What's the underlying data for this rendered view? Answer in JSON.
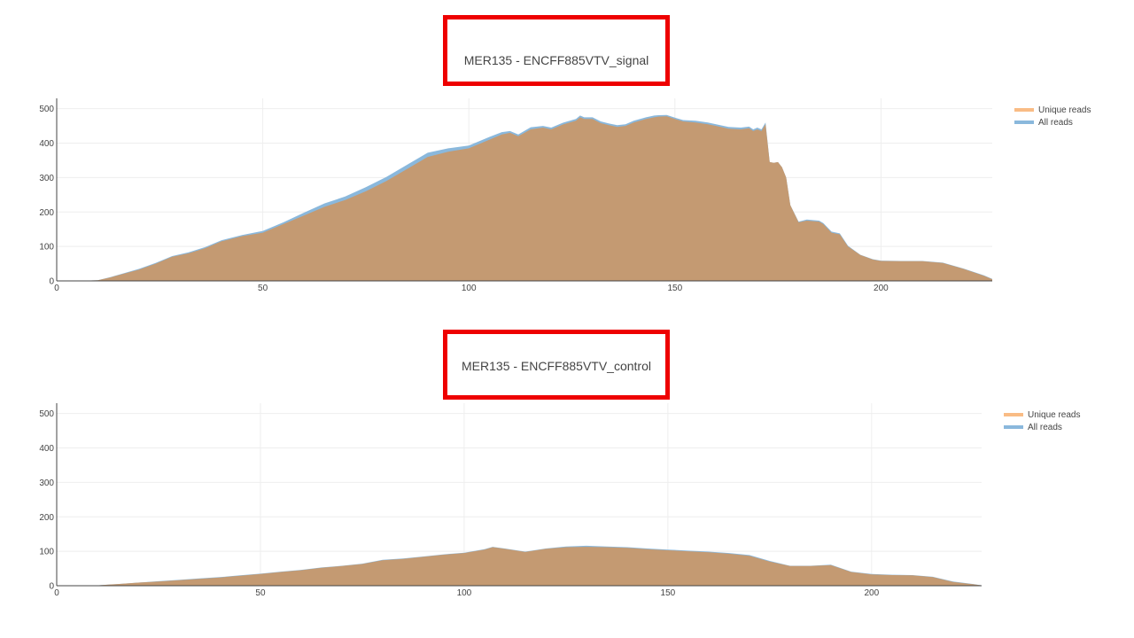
{
  "colors": {
    "unique": "#f9bc85",
    "all": "#8ab8dc",
    "overlap": "#c49a72",
    "frame": "#ee0000",
    "grid": "#eeeeee",
    "axis": "#444444"
  },
  "chart_data": [
    {
      "type": "area",
      "title": "MER135 - ENCFF885VTV_signal",
      "xlabel": "",
      "ylabel": "",
      "xlim": [
        0,
        227
      ],
      "ylim": [
        0,
        530
      ],
      "x_ticks": [
        0,
        50,
        100,
        150,
        200
      ],
      "y_ticks": [
        0,
        100,
        200,
        300,
        400,
        500
      ],
      "grid": true,
      "legend_position": "top-right",
      "series": [
        {
          "name": "Unique reads",
          "x": [
            0,
            5,
            10,
            13,
            16,
            20,
            24,
            28,
            32,
            36,
            40,
            45,
            50,
            55,
            60,
            65,
            70,
            75,
            80,
            85,
            90,
            95,
            100,
            105,
            108,
            110,
            112,
            115,
            118,
            120,
            123,
            126,
            127,
            128,
            130,
            132,
            134,
            136,
            138,
            140,
            143,
            145,
            146,
            148,
            150,
            152,
            155,
            158,
            160,
            163,
            166,
            168,
            169,
            170,
            171,
            172,
            173,
            174,
            175,
            176,
            177,
            178,
            180,
            182,
            185,
            186,
            188,
            190,
            192,
            195,
            198,
            200,
            205,
            210,
            215,
            220,
            225,
            227
          ],
          "values": [
            0,
            0,
            2,
            10,
            20,
            33,
            50,
            70,
            80,
            95,
            115,
            130,
            140,
            165,
            190,
            215,
            235,
            260,
            290,
            325,
            360,
            375,
            385,
            410,
            425,
            430,
            420,
            440,
            445,
            440,
            455,
            465,
            475,
            470,
            470,
            458,
            452,
            447,
            450,
            460,
            470,
            475,
            477,
            478,
            470,
            463,
            460,
            455,
            450,
            442,
            440,
            443,
            435,
            440,
            435,
            455,
            345,
            343,
            345,
            330,
            300,
            220,
            170,
            175,
            172,
            165,
            140,
            135,
            100,
            75,
            62,
            58,
            57,
            57,
            52,
            35,
            15,
            5
          ]
        },
        {
          "name": "All reads",
          "x": [
            0,
            5,
            10,
            13,
            16,
            20,
            24,
            28,
            32,
            36,
            40,
            45,
            50,
            55,
            60,
            65,
            70,
            75,
            80,
            85,
            90,
            95,
            100,
            105,
            108,
            110,
            112,
            115,
            118,
            120,
            123,
            126,
            127,
            128,
            130,
            132,
            134,
            136,
            138,
            140,
            143,
            145,
            146,
            148,
            150,
            152,
            155,
            158,
            160,
            163,
            166,
            168,
            169,
            170,
            171,
            172,
            173,
            174,
            175,
            176,
            177,
            178,
            180,
            182,
            185,
            186,
            188,
            190,
            192,
            195,
            198,
            200,
            205,
            210,
            215,
            220,
            225,
            227
          ],
          "values": [
            0,
            0,
            2,
            11,
            21,
            35,
            52,
            72,
            83,
            98,
            118,
            133,
            145,
            170,
            198,
            225,
            245,
            272,
            302,
            337,
            372,
            385,
            393,
            418,
            432,
            435,
            425,
            446,
            450,
            445,
            460,
            470,
            480,
            475,
            475,
            463,
            457,
            452,
            455,
            465,
            475,
            480,
            481,
            482,
            474,
            467,
            465,
            460,
            455,
            447,
            445,
            448,
            440,
            445,
            440,
            460,
            345,
            343,
            345,
            330,
            300,
            220,
            172,
            178,
            175,
            168,
            143,
            138,
            102,
            76,
            63,
            59,
            58,
            58,
            53,
            36,
            16,
            6
          ]
        }
      ]
    },
    {
      "type": "area",
      "title": "MER135 - ENCFF885VTV_control",
      "xlabel": "",
      "ylabel": "",
      "xlim": [
        0,
        227
      ],
      "ylim": [
        0,
        530
      ],
      "x_ticks": [
        0,
        50,
        100,
        150,
        200
      ],
      "y_ticks": [
        0,
        100,
        200,
        300,
        400,
        500
      ],
      "grid": true,
      "legend_position": "top-right",
      "series": [
        {
          "name": "Unique reads",
          "x": [
            0,
            5,
            10,
            15,
            20,
            25,
            30,
            35,
            40,
            45,
            50,
            55,
            60,
            65,
            70,
            75,
            80,
            85,
            90,
            95,
            100,
            105,
            107,
            110,
            115,
            120,
            125,
            130,
            135,
            140,
            145,
            150,
            155,
            160,
            165,
            170,
            175,
            180,
            185,
            190,
            195,
            200,
            205,
            210,
            215,
            220,
            225,
            227
          ],
          "values": [
            0,
            0,
            1,
            5,
            9,
            12,
            16,
            20,
            24,
            29,
            34,
            40,
            45,
            52,
            57,
            63,
            74,
            78,
            84,
            90,
            95,
            105,
            112,
            107,
            98,
            107,
            112,
            113,
            112,
            110,
            106,
            103,
            100,
            97,
            93,
            87,
            70,
            57,
            57,
            60,
            40,
            33,
            31,
            30,
            25,
            11,
            4,
            1
          ]
        },
        {
          "name": "All reads",
          "x": [
            0,
            5,
            10,
            15,
            20,
            25,
            30,
            35,
            40,
            45,
            50,
            55,
            60,
            65,
            70,
            75,
            80,
            85,
            90,
            95,
            100,
            105,
            107,
            110,
            115,
            120,
            125,
            130,
            135,
            140,
            145,
            150,
            155,
            160,
            165,
            170,
            175,
            180,
            185,
            190,
            195,
            200,
            205,
            210,
            215,
            220,
            225,
            227
          ],
          "values": [
            0,
            0,
            1,
            5,
            9,
            13,
            17,
            21,
            25,
            30,
            35,
            41,
            46,
            53,
            58,
            64,
            75,
            79,
            85,
            91,
            96,
            106,
            113,
            108,
            99,
            108,
            114,
            116,
            114,
            112,
            108,
            105,
            102,
            99,
            95,
            89,
            72,
            58,
            58,
            61,
            41,
            34,
            32,
            31,
            26,
            12,
            5,
            1
          ]
        }
      ]
    }
  ]
}
